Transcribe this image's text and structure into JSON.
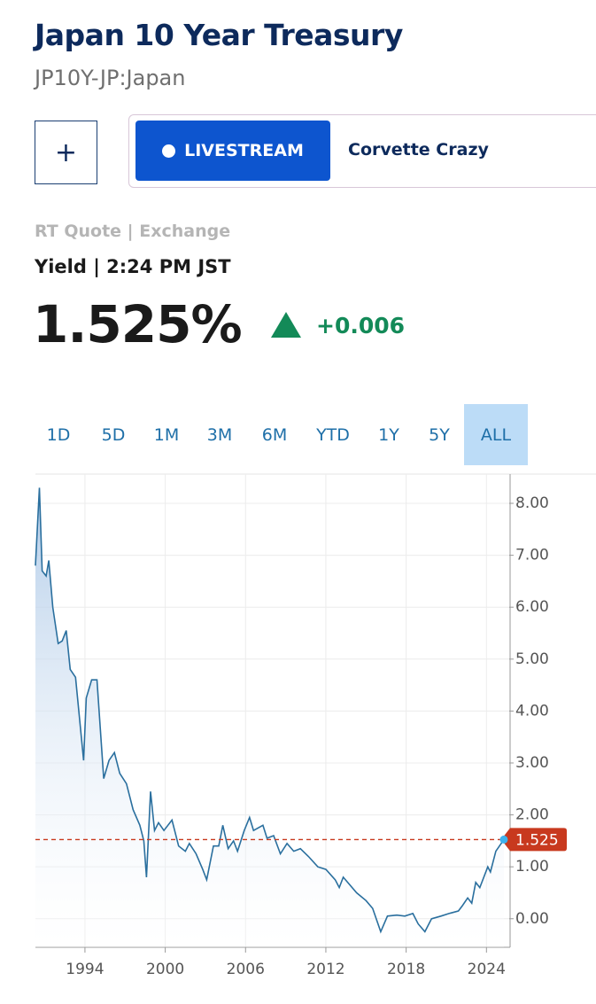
{
  "header": {
    "title": "Japan 10 Year Treasury",
    "subtitle": "JP10Y-JP:Japan"
  },
  "add_button": "+",
  "livestream": {
    "button": "LIVESTREAM",
    "show": "Corvette Crazy"
  },
  "quote": {
    "source": "RT Quote | Exchange",
    "label": "Yield | 2:24 PM JST",
    "last": "1.525%",
    "change": "+0.006"
  },
  "range_tabs": [
    "1D",
    "5D",
    "1M",
    "3M",
    "6M",
    "YTD",
    "1Y",
    "5Y",
    "ALL"
  ],
  "chart_data": {
    "type": "line",
    "x": [
      1990.3,
      1990.6,
      1990.8,
      1991.1,
      1991.3,
      1991.6,
      1992.0,
      1992.3,
      1992.6,
      1992.9,
      1993.3,
      1993.9,
      1994.1,
      1994.5,
      1994.9,
      1995.4,
      1995.8,
      1996.2,
      1996.6,
      1997.1,
      1997.6,
      1998.1,
      1998.4,
      1998.6,
      1998.9,
      1999.2,
      1999.5,
      1999.9,
      2000.5,
      2001.0,
      2001.5,
      2001.8,
      2002.3,
      2002.8,
      2003.1,
      2003.6,
      2004.0,
      2004.3,
      2004.7,
      2005.1,
      2005.4,
      2005.9,
      2006.3,
      2006.6,
      2007.3,
      2007.6,
      2008.1,
      2008.6,
      2009.1,
      2009.6,
      2010.1,
      2010.7,
      2011.4,
      2012.0,
      2012.7,
      2013.0,
      2013.3,
      2014.3,
      2015.0,
      2015.5,
      2016.1,
      2016.6,
      2017.3,
      2017.9,
      2018.5,
      2018.9,
      2019.4,
      2019.9,
      2020.6,
      2021.2,
      2021.9,
      2022.2,
      2022.6,
      2022.9,
      2023.2,
      2023.5,
      2024.1,
      2024.3,
      2024.7,
      2025.3
    ],
    "series": [
      {
        "color": "#2a6f9e",
        "values": [
          6.8,
          8.3,
          6.7,
          6.6,
          6.9,
          6.0,
          5.3,
          5.35,
          5.55,
          4.8,
          4.65,
          3.05,
          4.25,
          4.6,
          4.6,
          2.7,
          3.05,
          3.2,
          2.8,
          2.6,
          2.1,
          1.8,
          1.5,
          0.8,
          2.45,
          1.7,
          1.85,
          1.7,
          1.9,
          1.4,
          1.3,
          1.45,
          1.25,
          0.95,
          0.75,
          1.4,
          1.4,
          1.8,
          1.35,
          1.5,
          1.3,
          1.7,
          1.95,
          1.7,
          1.8,
          1.55,
          1.6,
          1.25,
          1.45,
          1.3,
          1.35,
          1.2,
          1.0,
          0.95,
          0.75,
          0.6,
          0.8,
          0.5,
          0.35,
          0.2,
          -0.25,
          0.05,
          0.07,
          0.05,
          0.1,
          -0.1,
          -0.25,
          0.0,
          0.05,
          0.1,
          0.15,
          0.25,
          0.4,
          0.3,
          0.7,
          0.6,
          1.0,
          0.9,
          1.3,
          1.525
        ]
      }
    ],
    "xlim": [
      1990.3,
      2025.7
    ],
    "xticks": [
      1994,
      2000,
      2006,
      2012,
      2018,
      2024
    ],
    "ylim": [
      -0.55,
      8.35
    ],
    "yticks": [
      {
        "value": 0,
        "label": "0.00"
      },
      {
        "value": 1,
        "label": "1.00"
      },
      {
        "value": 2,
        "label": "2.00"
      },
      {
        "value": 3,
        "label": "3.00"
      },
      {
        "value": 4,
        "label": "4.00"
      },
      {
        "value": 5,
        "label": "5.00"
      },
      {
        "value": 6,
        "label": "6.00"
      },
      {
        "value": 7,
        "label": "7.00"
      },
      {
        "value": 8,
        "label": "8.00"
      }
    ],
    "reference_line": {
      "value": 1.525,
      "label": "1.525",
      "color": "#c8391e"
    },
    "grid": true
  }
}
